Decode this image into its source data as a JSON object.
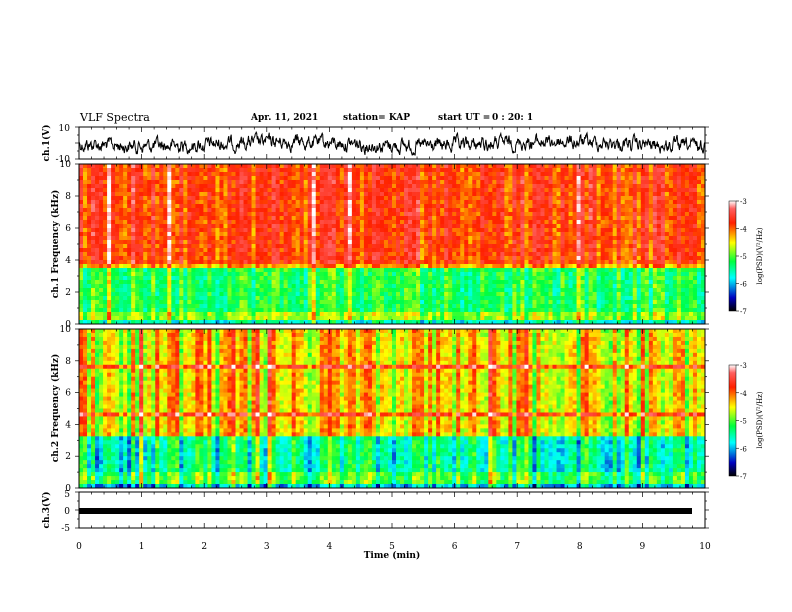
{
  "header": {
    "title": "VLF Spectra",
    "date": "Apr. 11, 2021",
    "station": "station= KAP",
    "start_label": "start UT =",
    "start_time": "0 : 20: 1"
  },
  "chart_data": [
    {
      "type": "line",
      "name": "ch1-waveform",
      "ylabel": "ch.1(V)",
      "ylim": [
        -10,
        10
      ],
      "yticks": [
        "10",
        "-10"
      ],
      "xlim": [
        0,
        10
      ]
    },
    {
      "type": "heatmap",
      "name": "ch1-spectrogram",
      "ylabel": "ch.1 Frequency (kHz)",
      "ylim": [
        0,
        10
      ],
      "yticks": [
        "0",
        "2",
        "4",
        "6",
        "8",
        "10"
      ],
      "xlim": [
        0,
        10
      ],
      "colorbar": {
        "label": "log(PSD)(V²/Hz)",
        "range": [
          -7,
          -3
        ],
        "ticks": [
          "-3",
          "-4",
          "-5",
          "-6",
          "-7"
        ]
      }
    },
    {
      "type": "heatmap",
      "name": "ch2-spectrogram",
      "ylabel": "ch.2 Frequency (kHz)",
      "ylim": [
        0,
        10
      ],
      "yticks": [
        "0",
        "2",
        "4",
        "6",
        "8",
        "10"
      ],
      "xlim": [
        0,
        10
      ],
      "colorbar": {
        "label": "log(PSD)(V²/Hz)",
        "range": [
          -7,
          -3
        ],
        "ticks": [
          "-3",
          "-4",
          "-5",
          "-6",
          "-7"
        ]
      }
    },
    {
      "type": "line",
      "name": "ch3-waveform",
      "ylabel": "ch.3(V)",
      "ylim": [
        -5,
        5
      ],
      "yticks": [
        "5",
        "0",
        "-5"
      ],
      "xlim": [
        0,
        10
      ],
      "xlabel": "Time (min)",
      "xticks": [
        "0",
        "1",
        "2",
        "3",
        "4",
        "5",
        "6",
        "7",
        "8",
        "9",
        "10"
      ]
    }
  ]
}
